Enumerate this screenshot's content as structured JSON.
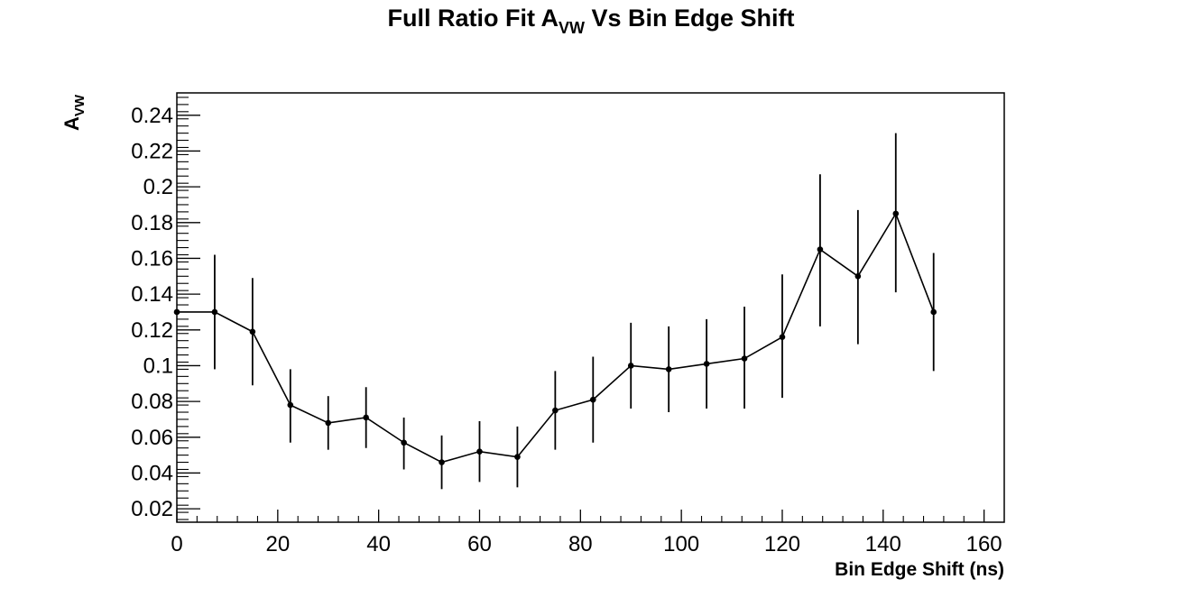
{
  "chart_data": {
    "type": "line",
    "title": {
      "main": "Full Ratio Fit A",
      "sub": "VW",
      "rest": " Vs Bin Edge Shift"
    },
    "xlabel": "Bin Edge Shift (ns)",
    "ylabel": {
      "main": "A",
      "sub": "VW"
    },
    "xlim": [
      0,
      164
    ],
    "ylim": [
      0.0125,
      0.2525
    ],
    "x_ticks": [
      0,
      20,
      40,
      60,
      80,
      100,
      120,
      140,
      160
    ],
    "x_tick_labels": [
      "0",
      "20",
      "40",
      "60",
      "80",
      "100",
      "120",
      "140",
      "160"
    ],
    "y_ticks": [
      0.02,
      0.04,
      0.06,
      0.08,
      0.1,
      0.12,
      0.14,
      0.16,
      0.18,
      0.2,
      0.22,
      0.24
    ],
    "y_tick_labels": [
      "0.02",
      "0.04",
      "0.06",
      "0.08",
      "0.1",
      "0.12",
      "0.14",
      "0.16",
      "0.18",
      "0.2",
      "0.22",
      "0.24"
    ],
    "grid": false,
    "series": [
      {
        "x": [
          0,
          7.5,
          15,
          22.5,
          30,
          37.5,
          45,
          52.5,
          60,
          67.5,
          75,
          82.5,
          90,
          97.5,
          105,
          112.5,
          120,
          127.5,
          135,
          142.5,
          150
        ],
        "y": [
          0.13,
          0.13,
          0.119,
          0.078,
          0.068,
          0.071,
          0.057,
          0.046,
          0.052,
          0.049,
          0.075,
          0.081,
          0.1,
          0.098,
          0.101,
          0.104,
          0.116,
          0.165,
          0.15,
          0.185,
          0.13
        ],
        "y_low": [
          null,
          0.098,
          0.089,
          0.057,
          0.053,
          0.054,
          0.042,
          0.031,
          0.035,
          0.032,
          0.053,
          0.057,
          0.076,
          0.074,
          0.076,
          0.076,
          0.082,
          0.122,
          0.112,
          0.141,
          0.097
        ],
        "y_high": [
          null,
          0.162,
          0.149,
          0.098,
          0.083,
          0.088,
          0.071,
          0.061,
          0.069,
          0.066,
          0.097,
          0.105,
          0.124,
          0.122,
          0.126,
          0.133,
          0.151,
          0.207,
          0.187,
          0.23,
          0.163
        ]
      }
    ],
    "colors": {
      "line": "#000000",
      "marker": "#000000",
      "axis": "#000000"
    }
  }
}
